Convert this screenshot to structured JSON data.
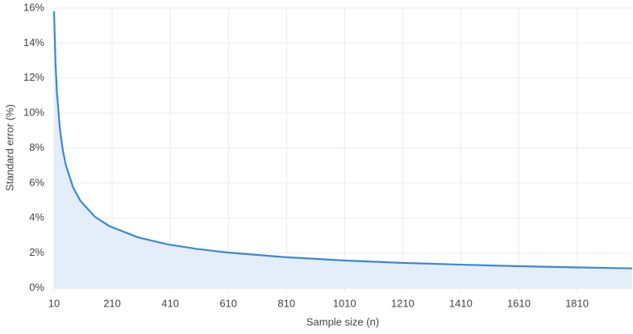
{
  "chart_data": {
    "type": "area",
    "x_label": "Sample size (n)",
    "y_label": "Standard error (%)",
    "x": [
      10,
      15,
      20,
      30,
      40,
      50,
      75,
      100,
      150,
      200,
      300,
      400,
      500,
      600,
      800,
      1000,
      1200,
      1400,
      1600,
      1800,
      2000
    ],
    "values": [
      15.81,
      12.91,
      11.18,
      9.13,
      7.91,
      7.07,
      5.77,
      5.0,
      4.08,
      3.54,
      2.89,
      2.5,
      2.24,
      2.04,
      1.77,
      1.58,
      1.44,
      1.34,
      1.25,
      1.18,
      1.12
    ],
    "color": "#3a87d6",
    "fill_color": "#e4eefa",
    "xlim": [
      10,
      2000
    ],
    "xticks": [
      10,
      210,
      410,
      610,
      810,
      1010,
      1210,
      1410,
      1610,
      1810
    ],
    "ylim": [
      0,
      16
    ],
    "yticks": [
      {
        "value": 0,
        "label": "0%"
      },
      {
        "value": 2,
        "label": "2%"
      },
      {
        "value": 4,
        "label": "4%"
      },
      {
        "value": 6,
        "label": "6%"
      },
      {
        "value": 8,
        "label": "8%"
      },
      {
        "value": 10,
        "label": "10%"
      },
      {
        "value": 12,
        "label": "12%"
      },
      {
        "value": 14,
        "label": "14%"
      },
      {
        "value": 16,
        "label": "16%"
      }
    ],
    "grid": true
  }
}
